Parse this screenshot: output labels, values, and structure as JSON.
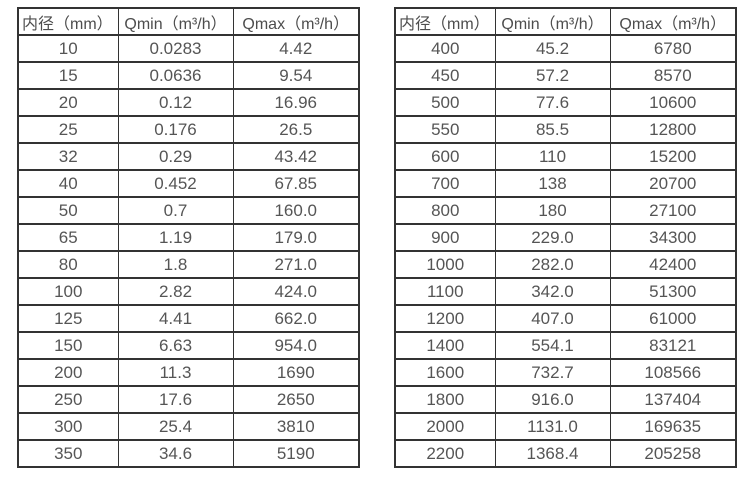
{
  "colors": {
    "background": "#ffffff",
    "border": "#333333",
    "header_text": "#4d4d4d",
    "cell_text": "#555555"
  },
  "tables": [
    {
      "name": "flow-table-small-diameters",
      "headers": [
        "内径（mm）",
        "Qmin（m³/h）",
        "Qmax（m³/h）"
      ],
      "rows": [
        [
          "10",
          "0.0283",
          "4.42"
        ],
        [
          "15",
          "0.0636",
          "9.54"
        ],
        [
          "20",
          "0.12",
          "16.96"
        ],
        [
          "25",
          "0.176",
          "26.5"
        ],
        [
          "32",
          "0.29",
          "43.42"
        ],
        [
          "40",
          "0.452",
          "67.85"
        ],
        [
          "50",
          "0.7",
          "160.0"
        ],
        [
          "65",
          "1.19",
          "179.0"
        ],
        [
          "80",
          "1.8",
          "271.0"
        ],
        [
          "100",
          "2.82",
          "424.0"
        ],
        [
          "125",
          "4.41",
          "662.0"
        ],
        [
          "150",
          "6.63",
          "954.0"
        ],
        [
          "200",
          "11.3",
          "1690"
        ],
        [
          "250",
          "17.6",
          "2650"
        ],
        [
          "300",
          "25.4",
          "3810"
        ],
        [
          "350",
          "34.6",
          "5190"
        ]
      ]
    },
    {
      "name": "flow-table-large-diameters",
      "headers": [
        "内径（mm）",
        "Qmin（m³/h）",
        "Qmax（m³/h）"
      ],
      "rows": [
        [
          "400",
          "45.2",
          "6780"
        ],
        [
          "450",
          "57.2",
          "8570"
        ],
        [
          "500",
          "77.6",
          "10600"
        ],
        [
          "550",
          "85.5",
          "12800"
        ],
        [
          "600",
          "110",
          "15200"
        ],
        [
          "700",
          "138",
          "20700"
        ],
        [
          "800",
          "180",
          "27100"
        ],
        [
          "900",
          "229.0",
          "34300"
        ],
        [
          "1000",
          "282.0",
          "42400"
        ],
        [
          "1100",
          "342.0",
          "51300"
        ],
        [
          "1200",
          "407.0",
          "61000"
        ],
        [
          "1400",
          "554.1",
          "83121"
        ],
        [
          "1600",
          "732.7",
          "108566"
        ],
        [
          "1800",
          "916.0",
          "137404"
        ],
        [
          "2000",
          "1131.0",
          "169635"
        ],
        [
          "2200",
          "1368.4",
          "205258"
        ]
      ]
    }
  ]
}
